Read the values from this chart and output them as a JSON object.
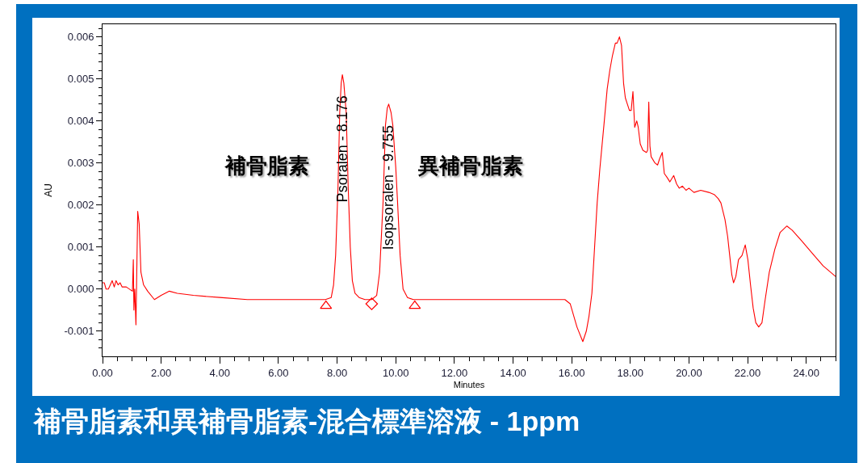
{
  "chart_data": {
    "type": "line",
    "title": "補骨脂素和異補骨脂素-混合標準溶液 - 1ppm",
    "xlabel": "Minutes",
    "ylabel": "AU",
    "xlim": [
      0,
      25
    ],
    "ylim": [
      -0.0016,
      0.0063
    ],
    "xticks": [
      {
        "value": 0,
        "label": "0.00"
      },
      {
        "value": 0.5,
        "label": null
      },
      {
        "value": 1,
        "label": null
      },
      {
        "value": 1.5,
        "label": null
      },
      {
        "value": 2,
        "label": "2.00"
      },
      {
        "value": 2.5,
        "label": null
      },
      {
        "value": 3,
        "label": null
      },
      {
        "value": 3.5,
        "label": null
      },
      {
        "value": 4,
        "label": "4.00"
      },
      {
        "value": 4.5,
        "label": null
      },
      {
        "value": 5,
        "label": null
      },
      {
        "value": 5.5,
        "label": null
      },
      {
        "value": 6,
        "label": "6.00"
      },
      {
        "value": 6.5,
        "label": null
      },
      {
        "value": 7,
        "label": null
      },
      {
        "value": 7.5,
        "label": null
      },
      {
        "value": 8,
        "label": "8.00"
      },
      {
        "value": 8.5,
        "label": null
      },
      {
        "value": 9,
        "label": null
      },
      {
        "value": 9.5,
        "label": null
      },
      {
        "value": 10,
        "label": "10.00"
      },
      {
        "value": 10.5,
        "label": null
      },
      {
        "value": 11,
        "label": null
      },
      {
        "value": 11.5,
        "label": null
      },
      {
        "value": 12,
        "label": "12.00"
      },
      {
        "value": 12.5,
        "label": null
      },
      {
        "value": 13,
        "label": null
      },
      {
        "value": 13.5,
        "label": null
      },
      {
        "value": 14,
        "label": "14.00"
      },
      {
        "value": 14.5,
        "label": null
      },
      {
        "value": 15,
        "label": null
      },
      {
        "value": 15.5,
        "label": null
      },
      {
        "value": 16,
        "label": "16.00"
      },
      {
        "value": 16.5,
        "label": null
      },
      {
        "value": 17,
        "label": null
      },
      {
        "value": 17.5,
        "label": null
      },
      {
        "value": 18,
        "label": "18.00"
      },
      {
        "value": 18.5,
        "label": null
      },
      {
        "value": 19,
        "label": null
      },
      {
        "value": 19.5,
        "label": null
      },
      {
        "value": 20,
        "label": "20.00"
      },
      {
        "value": 20.5,
        "label": null
      },
      {
        "value": 21,
        "label": null
      },
      {
        "value": 21.5,
        "label": null
      },
      {
        "value": 22,
        "label": "22.00"
      },
      {
        "value": 22.5,
        "label": null
      },
      {
        "value": 23,
        "label": null
      },
      {
        "value": 23.5,
        "label": null
      },
      {
        "value": 24,
        "label": "24.00"
      },
      {
        "value": 24.5,
        "label": null
      },
      {
        "value": 25,
        "label": null
      }
    ],
    "yticks": [
      {
        "value": -0.0014,
        "label": null
      },
      {
        "value": -0.0012,
        "label": null
      },
      {
        "value": -0.001,
        "label": "-0.001"
      },
      {
        "value": -0.0008,
        "label": null
      },
      {
        "value": -0.0006,
        "label": null
      },
      {
        "value": -0.0004,
        "label": null
      },
      {
        "value": -0.0002,
        "label": null
      },
      {
        "value": 0,
        "label": "0.000"
      },
      {
        "value": 0.0002,
        "label": null
      },
      {
        "value": 0.0004,
        "label": null
      },
      {
        "value": 0.0006,
        "label": null
      },
      {
        "value": 0.0008,
        "label": null
      },
      {
        "value": 0.001,
        "label": "0.001"
      },
      {
        "value": 0.0012,
        "label": null
      },
      {
        "value": 0.0014,
        "label": null
      },
      {
        "value": 0.0016,
        "label": null
      },
      {
        "value": 0.0018,
        "label": null
      },
      {
        "value": 0.002,
        "label": "0.002"
      },
      {
        "value": 0.0022,
        "label": null
      },
      {
        "value": 0.0024,
        "label": null
      },
      {
        "value": 0.0026,
        "label": null
      },
      {
        "value": 0.0028,
        "label": null
      },
      {
        "value": 0.003,
        "label": "0.003"
      },
      {
        "value": 0.0032,
        "label": null
      },
      {
        "value": 0.0034,
        "label": null
      },
      {
        "value": 0.0036,
        "label": null
      },
      {
        "value": 0.0038,
        "label": null
      },
      {
        "value": 0.004,
        "label": "0.004"
      },
      {
        "value": 0.0042,
        "label": null
      },
      {
        "value": 0.0044,
        "label": null
      },
      {
        "value": 0.0046,
        "label": null
      },
      {
        "value": 0.0048,
        "label": null
      },
      {
        "value": 0.005,
        "label": "0.005"
      },
      {
        "value": 0.0052,
        "label": null
      },
      {
        "value": 0.0054,
        "label": null
      },
      {
        "value": 0.0056,
        "label": null
      },
      {
        "value": 0.0058,
        "label": null
      },
      {
        "value": 0.006,
        "label": "0.006"
      },
      {
        "value": 0.0062,
        "label": null
      }
    ],
    "annotations": [
      {
        "text": "Psoralen - 8.176",
        "x": 8.176,
        "y": 0.0051
      },
      {
        "text": "Isopsoralen - 9.755",
        "x": 9.755,
        "y": 0.0044
      },
      "補骨脂素",
      "異補骨脂素"
    ],
    "series": [
      {
        "color": "#ff0000",
        "x": [
          0,
          0.06,
          0.12,
          0.2,
          0.33,
          0.4,
          0.46,
          0.53,
          0.6,
          0.67,
          0.81,
          1.02,
          1.05,
          1.07,
          1.1,
          1.14,
          1.2,
          1.25,
          1.31,
          1.4,
          1.54,
          1.77,
          2.0,
          2.28,
          2.55,
          3.1,
          4.0,
          4.94,
          6.0,
          7.0,
          7.6,
          7.8,
          7.88,
          7.95,
          8.03,
          8.09,
          8.14,
          8.18,
          8.23,
          8.31,
          8.38,
          8.45,
          8.52,
          8.61,
          8.75,
          8.95,
          9.18,
          9.35,
          9.45,
          9.57,
          9.65,
          9.71,
          9.76,
          9.84,
          9.9,
          10.0,
          10.06,
          10.15,
          10.25,
          10.4,
          10.6,
          11.0,
          13.0,
          15.0,
          15.77,
          15.95,
          16.18,
          16.38,
          16.5,
          16.59,
          16.69,
          16.87,
          16.96,
          17.1,
          17.21,
          17.3,
          17.39,
          17.49,
          17.55,
          17.63,
          17.7,
          17.77,
          17.83,
          17.9,
          17.97,
          18.03,
          18.09,
          18.15,
          18.22,
          18.27,
          18.34,
          18.43,
          18.55,
          18.59,
          18.63,
          18.67,
          18.71,
          18.84,
          18.93,
          19.0,
          19.09,
          19.16,
          19.26,
          19.35,
          19.48,
          19.58,
          19.67,
          19.78,
          19.9,
          20.0,
          20.17,
          20.4,
          20.68,
          20.86,
          21.0,
          21.09,
          21.23,
          21.32,
          21.39,
          21.46,
          21.52,
          21.6,
          21.69,
          21.81,
          21.92,
          22.01,
          22.1,
          22.19,
          22.28,
          22.38,
          22.49,
          22.6,
          22.74,
          22.93,
          23.11,
          23.34,
          23.52,
          23.84,
          24.21,
          24.58,
          25.0
        ],
        "values": [
          0.00015,
          0.00015,
          0.0,
          0.0,
          0.0002,
          5e-05,
          0.0002,
          0.0001,
          0.00015,
          5e-05,
          5e-05,
          -5e-05,
          0.0007,
          -0.0005,
          0.0,
          -0.00085,
          0.00185,
          0.00155,
          0.0004,
          0.0001,
          -5e-05,
          -0.00025,
          -0.00015,
          -5e-05,
          -0.0001,
          -0.00015,
          -0.0002,
          -0.00025,
          -0.00025,
          -0.00025,
          -0.00025,
          -0.0002,
          0.0001,
          0.0008,
          0.0024,
          0.0042,
          0.0049,
          0.0051,
          0.0049,
          0.0042,
          0.0024,
          0.001,
          0.0002,
          -0.0001,
          -0.0002,
          -0.00025,
          -0.00025,
          -0.00015,
          0.0004,
          0.0021,
          0.0039,
          0.0043,
          0.0044,
          0.0042,
          0.0039,
          0.0029,
          0.0021,
          0.0008,
          0.0,
          -0.0002,
          -0.00025,
          -0.00025,
          -0.00025,
          -0.00025,
          -0.00025,
          -0.00035,
          -0.0009,
          -0.00125,
          -0.001,
          -0.00065,
          -0.0001,
          0.00205,
          0.00285,
          0.0039,
          0.00475,
          0.0052,
          0.00555,
          0.00585,
          0.00585,
          0.006,
          0.0058,
          0.0049,
          0.00455,
          0.0044,
          0.00425,
          0.00425,
          0.0047,
          0.00385,
          0.004,
          0.00385,
          0.00345,
          0.0033,
          0.00325,
          0.0033,
          0.00445,
          0.0034,
          0.00315,
          0.003,
          0.00295,
          0.0031,
          0.00325,
          0.00275,
          0.00265,
          0.00255,
          0.0027,
          0.0025,
          0.0024,
          0.00245,
          0.00235,
          0.0024,
          0.0023,
          0.00235,
          0.0023,
          0.00225,
          0.00215,
          0.00205,
          0.00165,
          0.00125,
          0.0008,
          0.00035,
          0.00015,
          0.0003,
          0.0007,
          0.0008,
          0.00105,
          0.0007,
          0.0001,
          -0.00045,
          -0.0008,
          -0.0009,
          -0.0008,
          -0.00025,
          0.0004,
          0.00095,
          0.00135,
          0.0015,
          0.0014,
          0.00115,
          0.00085,
          0.00055,
          0.0003
        ]
      },
      {
        "type": "scatter",
        "color": "#ff0000",
        "marker": "triangle",
        "x": [
          7.62,
          10.65
        ],
        "values": [
          -0.0004,
          -0.0004
        ]
      },
      {
        "type": "scatter",
        "color": "#ff0000",
        "marker": "diamond",
        "x": [
          9.18
        ],
        "values": [
          -0.00035
        ]
      }
    ]
  }
}
